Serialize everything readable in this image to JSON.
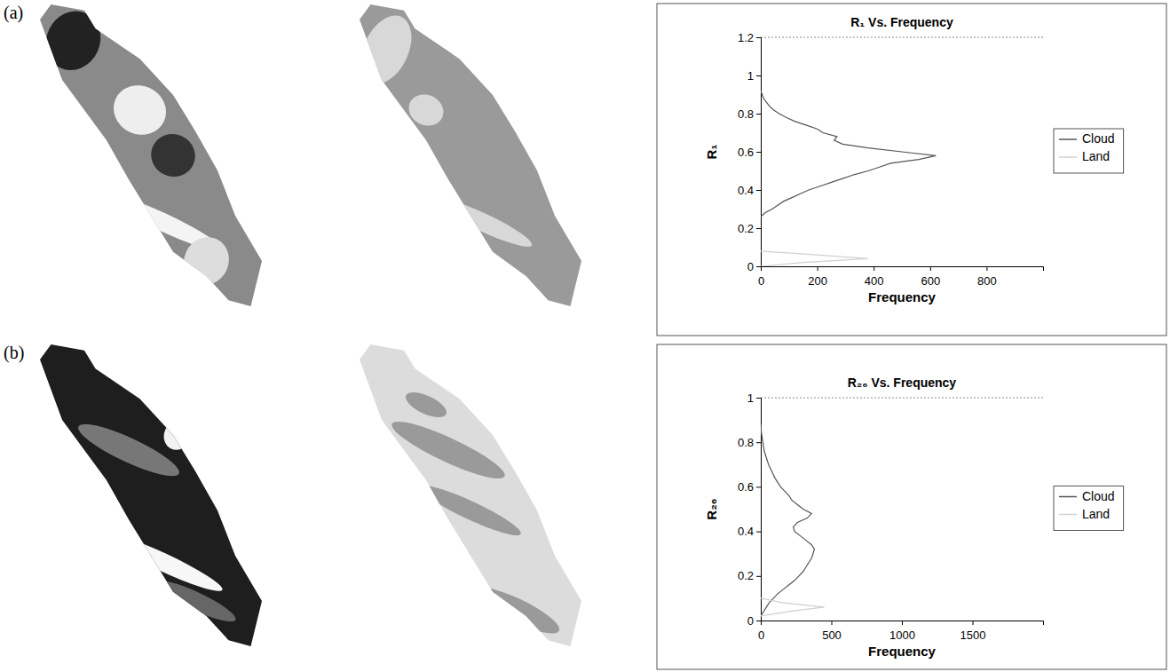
{
  "chart_data": [
    {
      "type": "line",
      "panel_label": "(a)",
      "title": "R₁ Vs. Frequency",
      "x_label": "Frequency",
      "y_label": "R₁",
      "xlim": [
        0,
        1000
      ],
      "xticks": [
        0,
        200,
        400,
        600,
        800
      ],
      "ylim": [
        0,
        1.2
      ],
      "yticks": [
        0,
        0.2,
        0.4,
        0.6,
        0.8,
        1,
        1.2
      ],
      "grid": false,
      "legend": "right",
      "series": [
        {
          "name": "Cloud",
          "color": "#555555",
          "x": [
            0,
            15,
            40,
            60,
            80,
            110,
            140,
            170,
            210,
            250,
            290,
            330,
            380,
            420,
            460,
            560,
            620,
            500,
            380,
            290,
            260,
            270,
            220,
            200,
            160,
            120,
            90,
            65,
            45,
            30,
            20,
            10,
            5,
            0
          ],
          "values": [
            0.26,
            0.28,
            0.3,
            0.32,
            0.34,
            0.36,
            0.38,
            0.4,
            0.42,
            0.44,
            0.46,
            0.48,
            0.5,
            0.52,
            0.54,
            0.56,
            0.58,
            0.6,
            0.62,
            0.64,
            0.66,
            0.68,
            0.7,
            0.72,
            0.74,
            0.76,
            0.78,
            0.8,
            0.82,
            0.84,
            0.86,
            0.88,
            0.9,
            0.92
          ]
        },
        {
          "name": "Land",
          "color": "#d0d0d0",
          "x": [
            0,
            150,
            380,
            200,
            0
          ],
          "values": [
            0,
            0.02,
            0.04,
            0.06,
            0.08
          ]
        }
      ]
    },
    {
      "type": "line",
      "panel_label": "(b)",
      "title": "R₂₆ Vs. Frequency",
      "x_label": "Frequency",
      "y_label": "R₂₆",
      "xlim": [
        0,
        2000
      ],
      "xticks": [
        0,
        500,
        1000,
        1500
      ],
      "ylim": [
        0,
        1
      ],
      "yticks": [
        0,
        0.2,
        0.4,
        0.6,
        0.8,
        1
      ],
      "grid": false,
      "legend": "right",
      "series": [
        {
          "name": "Cloud",
          "color": "#555555",
          "x": [
            0,
            20,
            40,
            60,
            90,
            120,
            160,
            200,
            240,
            270,
            300,
            320,
            340,
            360,
            370,
            380,
            360,
            320,
            280,
            240,
            230,
            260,
            330,
            360,
            300,
            260,
            220,
            200,
            170,
            140,
            120,
            100,
            85,
            70,
            55,
            45,
            35,
            25,
            20,
            15,
            10,
            5,
            2,
            0
          ],
          "values": [
            0.02,
            0.04,
            0.06,
            0.08,
            0.1,
            0.12,
            0.14,
            0.16,
            0.18,
            0.2,
            0.22,
            0.24,
            0.26,
            0.28,
            0.3,
            0.32,
            0.34,
            0.36,
            0.38,
            0.4,
            0.42,
            0.44,
            0.46,
            0.48,
            0.5,
            0.52,
            0.54,
            0.56,
            0.58,
            0.6,
            0.62,
            0.64,
            0.66,
            0.68,
            0.7,
            0.72,
            0.74,
            0.76,
            0.78,
            0.8,
            0.82,
            0.84,
            0.86,
            0.88
          ]
        },
        {
          "name": "Land",
          "color": "#d0d0d0",
          "x": [
            0,
            200,
            450,
            150,
            0
          ],
          "values": [
            0.02,
            0.04,
            0.06,
            0.08,
            0.1
          ]
        }
      ]
    }
  ]
}
